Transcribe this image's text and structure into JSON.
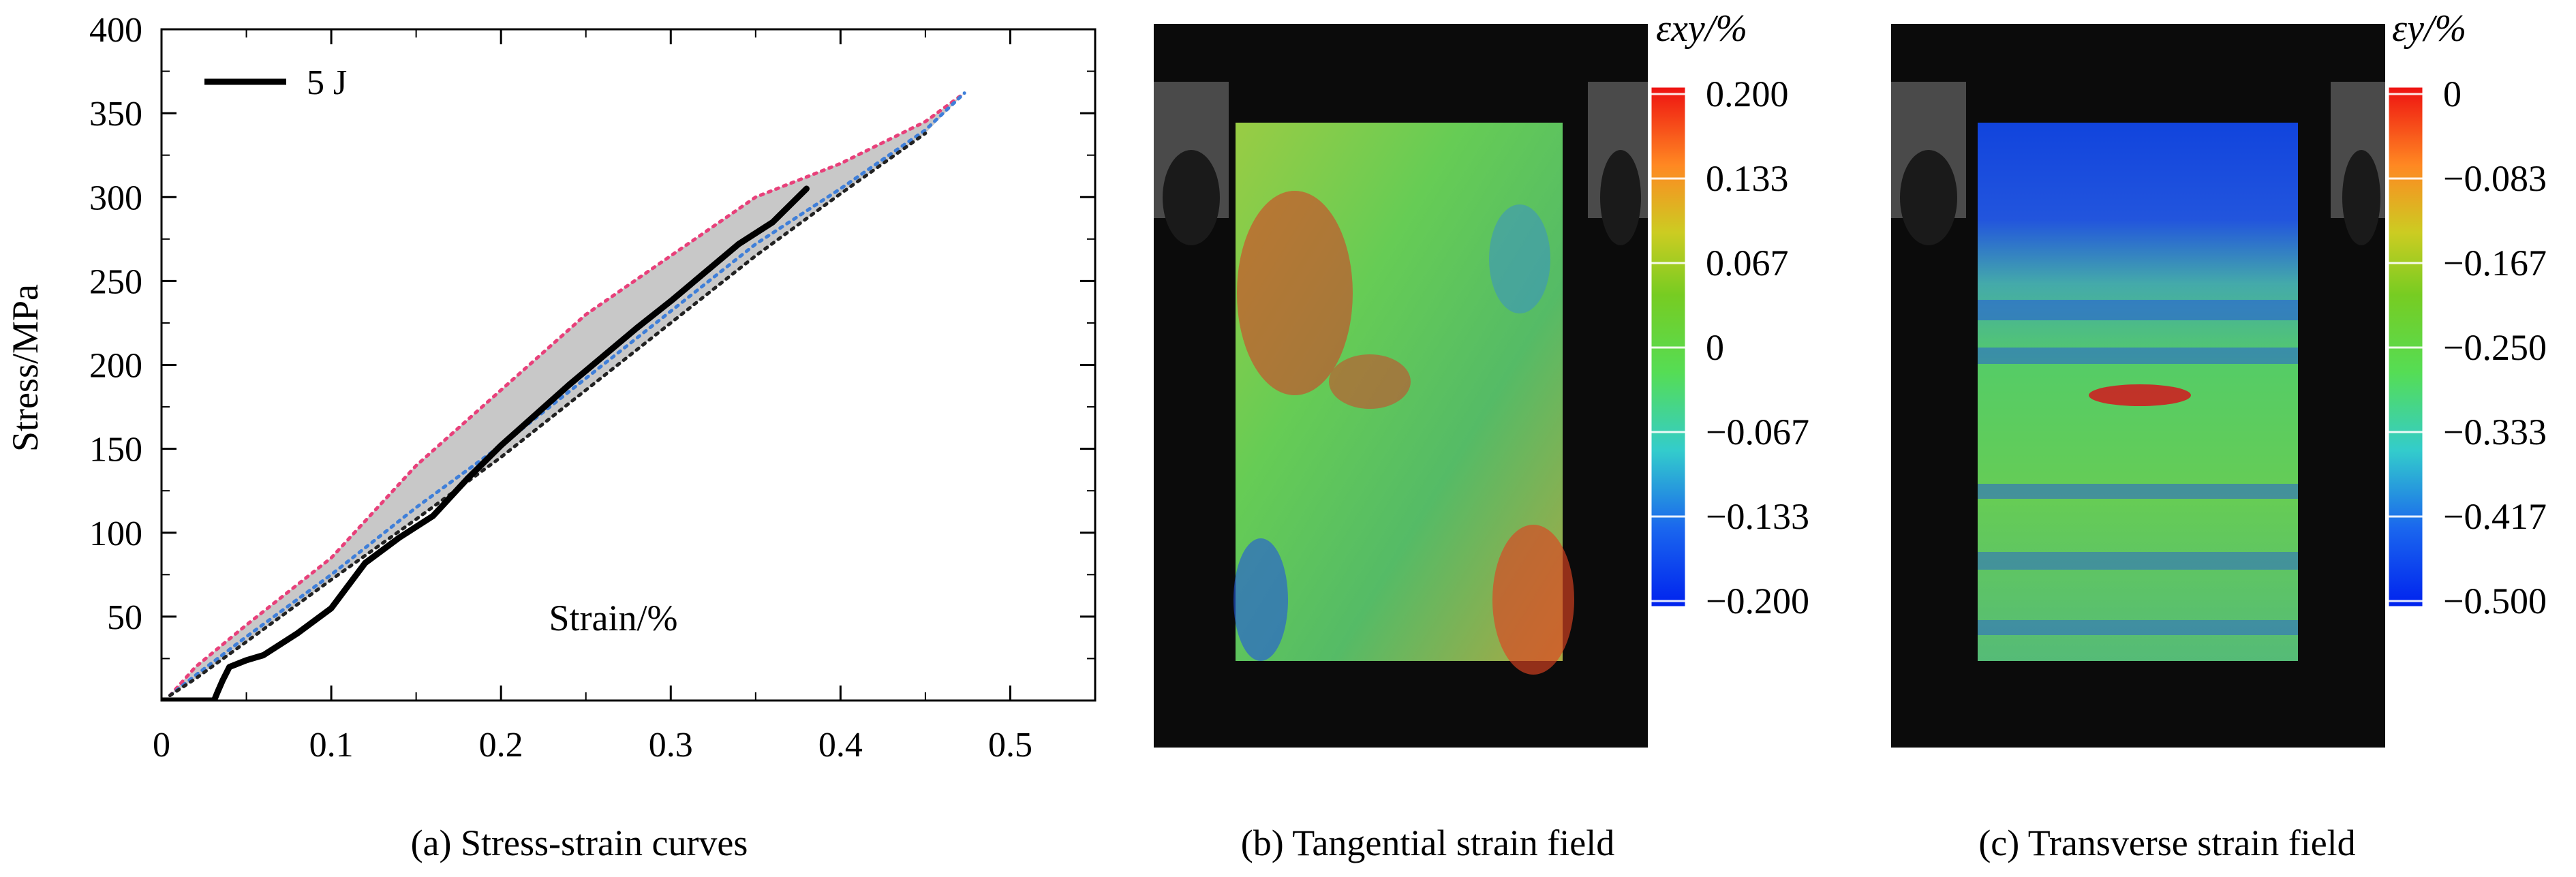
{
  "captions": {
    "a": "(a) Stress-strain curves",
    "b": "(b) Tangential strain field",
    "c": "(c) Transverse strain field"
  },
  "chart_data": [
    {
      "type": "line",
      "xlabel": "Strain/%",
      "ylabel": "Stress/MPa",
      "xlim": [
        0,
        0.55
      ],
      "ylim": [
        0,
        400
      ],
      "x_ticks": [
        "0",
        "0.1",
        "0.2",
        "0.3",
        "0.4",
        "0.5"
      ],
      "y_ticks": [
        "50",
        "100",
        "150",
        "200",
        "250",
        "300",
        "350",
        "400"
      ],
      "grid": false,
      "legend": "top-left",
      "series": [
        {
          "name": "5 J",
          "color": "#000000",
          "x": [
            0.0,
            0.031,
            0.033,
            0.036,
            0.04,
            0.05,
            0.06,
            0.08,
            0.1,
            0.12,
            0.14,
            0.16,
            0.18,
            0.2,
            0.22,
            0.24,
            0.26,
            0.28,
            0.3,
            0.32,
            0.34,
            0.36,
            0.38
          ],
          "y": [
            0,
            0,
            5,
            12,
            20,
            24,
            27,
            40,
            55,
            82,
            97,
            110,
            132,
            152,
            170,
            188,
            205,
            222,
            238,
            255,
            272,
            285,
            305
          ]
        },
        {
          "color": "#e8407a",
          "x": [
            0.005,
            0.02,
            0.05,
            0.1,
            0.15,
            0.2,
            0.25,
            0.3,
            0.35,
            0.4,
            0.45,
            0.473
          ],
          "y": [
            3,
            20,
            45,
            85,
            140,
            185,
            230,
            265,
            300,
            320,
            345,
            362
          ]
        },
        {
          "color": "#3f7fd9",
          "x": [
            0.005,
            0.02,
            0.05,
            0.1,
            0.15,
            0.2,
            0.25,
            0.3,
            0.35,
            0.4,
            0.45,
            0.473
          ],
          "y": [
            3,
            15,
            38,
            75,
            115,
            152,
            192,
            232,
            272,
            305,
            340,
            362
          ]
        },
        {
          "color": "#222222",
          "x": [
            0.005,
            0.02,
            0.05,
            0.1,
            0.15,
            0.2,
            0.25,
            0.3,
            0.35,
            0.4,
            0.45
          ],
          "y": [
            3,
            13,
            35,
            72,
            108,
            145,
            185,
            225,
            265,
            302,
            338
          ]
        }
      ]
    },
    {
      "type": "heatmap",
      "colorbar_title": "εxy/%",
      "colorbar_range": [
        -0.2,
        0.2
      ],
      "colorbar_ticks": [
        "0.200",
        "0.133",
        "0.067",
        "0",
        "−0.067",
        "−0.133",
        "−0.200"
      ]
    },
    {
      "type": "heatmap",
      "colorbar_title": "εy/%",
      "colorbar_range": [
        -0.5,
        0
      ],
      "colorbar_ticks": [
        "0",
        "−0.083",
        "−0.167",
        "−0.250",
        "−0.333",
        "−0.417",
        "−0.500"
      ]
    }
  ]
}
